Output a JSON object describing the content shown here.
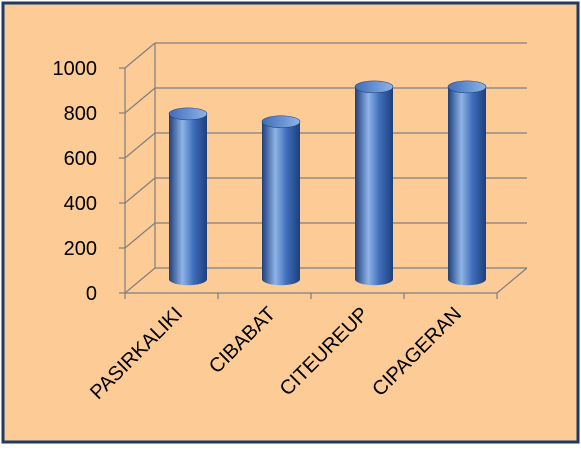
{
  "chart_data": {
    "type": "bar",
    "style": "3d-cylinder",
    "categories": [
      "PASIRKALIKI",
      "CIBABAT",
      "CITEUREUP",
      "CIPAGERAN"
    ],
    "series": [
      {
        "values": [
          735,
          700,
          855,
          855
        ]
      }
    ],
    "ylim": [
      0,
      1000
    ],
    "yticks": [
      0,
      200,
      400,
      600,
      800,
      1000
    ],
    "grid": true,
    "legend": "none",
    "colors": {
      "background": "#FCCB96",
      "border": "#1F3A64",
      "bar": "#3E6DBA",
      "bar_dark": "#1E3F7A",
      "bar_light": "#8EB3E8",
      "gridline": "#7F7F7F",
      "text": "#000000"
    }
  }
}
